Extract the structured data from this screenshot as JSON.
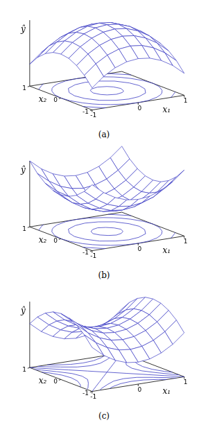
{
  "chart_data": [
    {
      "type": "surface",
      "caption": "(a)",
      "x_label": "x₁",
      "y_label": "x₂",
      "z_label": "ŷ",
      "color": "#3c3cc4",
      "x": [
        -1,
        -0.75,
        -0.5,
        -0.25,
        0,
        0.25,
        0.5,
        0.75,
        1
      ],
      "y": [
        -1,
        -0.75,
        -0.5,
        -0.25,
        0,
        0.25,
        0.5,
        0.75,
        1
      ],
      "values": [
        [
          0,
          0.44,
          0.75,
          0.94,
          1,
          0.94,
          0.75,
          0.44,
          0
        ],
        [
          0.44,
          0.88,
          1.19,
          1.38,
          1.44,
          1.38,
          1.19,
          0.88,
          0.44
        ],
        [
          0.75,
          1.19,
          1.5,
          1.69,
          1.75,
          1.69,
          1.5,
          1.19,
          0.75
        ],
        [
          0.94,
          1.38,
          1.69,
          1.88,
          1.94,
          1.88,
          1.69,
          1.38,
          0.94
        ],
        [
          1,
          1.44,
          1.75,
          1.94,
          2,
          1.94,
          1.75,
          1.44,
          1
        ],
        [
          0.94,
          1.38,
          1.69,
          1.88,
          1.94,
          1.88,
          1.69,
          1.38,
          0.94
        ],
        [
          0.75,
          1.19,
          1.5,
          1.69,
          1.75,
          1.69,
          1.5,
          1.19,
          0.75
        ],
        [
          0.44,
          0.88,
          1.19,
          1.38,
          1.44,
          1.38,
          1.19,
          0.88,
          0.44
        ],
        [
          0,
          0.44,
          0.75,
          0.94,
          1,
          0.94,
          0.75,
          0.44,
          0
        ]
      ],
      "contours": [
        0.5,
        1,
        1.5,
        1.9
      ],
      "xlim": [
        -1,
        1
      ],
      "xticks": [
        -1,
        0,
        1
      ],
      "ylim": [
        -1,
        1
      ],
      "yticks": [
        -1,
        0,
        1
      ],
      "zlim": [
        -1,
        2
      ]
    },
    {
      "type": "surface",
      "caption": "(b)",
      "x_label": "x₁",
      "y_label": "x₂",
      "z_label": "ŷ",
      "color": "#3c3cc4",
      "x": [
        -1,
        -0.75,
        -0.5,
        -0.25,
        0,
        0.25,
        0.5,
        0.75,
        1
      ],
      "y": [
        -1,
        -0.75,
        -0.5,
        -0.25,
        0,
        0.25,
        0.5,
        0.75,
        1
      ],
      "values": [
        [
          2,
          1.56,
          1.25,
          1.06,
          1,
          1.06,
          1.25,
          1.56,
          2
        ],
        [
          1.56,
          1.13,
          0.81,
          0.63,
          0.56,
          0.63,
          0.81,
          1.13,
          1.56
        ],
        [
          1.25,
          0.81,
          0.5,
          0.31,
          0.25,
          0.31,
          0.5,
          0.81,
          1.25
        ],
        [
          1.06,
          0.63,
          0.31,
          0.13,
          0.06,
          0.13,
          0.31,
          0.63,
          1.06
        ],
        [
          1,
          0.56,
          0.25,
          0.06,
          0,
          0.06,
          0.25,
          0.56,
          1
        ],
        [
          1.06,
          0.63,
          0.31,
          0.13,
          0.06,
          0.13,
          0.31,
          0.63,
          1.06
        ],
        [
          1.25,
          0.81,
          0.5,
          0.31,
          0.25,
          0.31,
          0.5,
          0.81,
          1.25
        ],
        [
          1.56,
          1.13,
          0.81,
          0.63,
          0.56,
          0.63,
          0.81,
          1.13,
          1.56
        ],
        [
          2,
          1.56,
          1.25,
          1.06,
          1,
          1.06,
          1.25,
          1.56,
          2
        ]
      ],
      "contours": [
        0.1,
        0.5,
        1,
        1.5
      ],
      "xlim": [
        -1,
        1
      ],
      "xticks": [
        -1,
        0,
        1
      ],
      "ylim": [
        -1,
        1
      ],
      "yticks": [
        -1,
        0,
        1
      ],
      "zlim": [
        -1,
        2
      ]
    },
    {
      "type": "surface",
      "caption": "(c)",
      "x_label": "x₁",
      "y_label": "x₂",
      "z_label": "ŷ",
      "color": "#3c3cc4",
      "x": [
        -1,
        -0.75,
        -0.5,
        -0.25,
        0,
        0.25,
        0.5,
        0.75,
        1
      ],
      "y": [
        -1,
        -0.75,
        -0.5,
        -0.25,
        0,
        0.25,
        0.5,
        0.75,
        1
      ],
      "values": [
        [
          1,
          0.56,
          0.25,
          0.06,
          0,
          0.06,
          0.25,
          0.56,
          1
        ],
        [
          1.44,
          1,
          0.69,
          0.5,
          0.44,
          0.5,
          0.69,
          1,
          1.44
        ],
        [
          1.75,
          1.31,
          1,
          0.81,
          0.75,
          0.81,
          1,
          1.31,
          1.75
        ],
        [
          1.94,
          1.5,
          1.19,
          1,
          0.94,
          1,
          1.19,
          1.5,
          1.94
        ],
        [
          2,
          1.56,
          1.25,
          1.06,
          1,
          1.06,
          1.25,
          1.56,
          2
        ],
        [
          1.94,
          1.5,
          1.19,
          1,
          0.94,
          1,
          1.19,
          1.5,
          1.94
        ],
        [
          1.75,
          1.31,
          1,
          0.81,
          0.75,
          0.81,
          1,
          1.31,
          1.75
        ],
        [
          1.44,
          1,
          0.69,
          0.5,
          0.44,
          0.5,
          0.69,
          1,
          1.44
        ],
        [
          1,
          0.56,
          0.25,
          0.06,
          0,
          0.06,
          0.25,
          0.56,
          1
        ]
      ],
      "contours": [
        0.4,
        0.7,
        1,
        1.3,
        1.6
      ],
      "xlim": [
        -1,
        1
      ],
      "xticks": [
        -1,
        0,
        1
      ],
      "ylim": [
        -1,
        1
      ],
      "yticks": [
        -1,
        0,
        1
      ],
      "zlim": [
        -1,
        2
      ]
    }
  ]
}
